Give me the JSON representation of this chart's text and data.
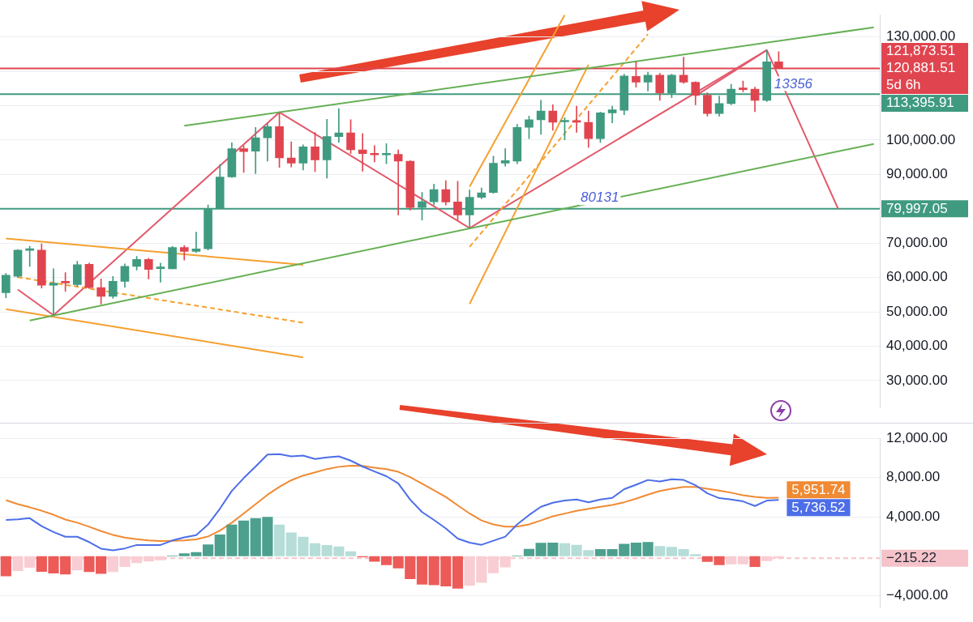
{
  "chart_data": [
    {
      "type": "candlestick",
      "categories": [
        null,
        null,
        null,
        null,
        null,
        null,
        null,
        null,
        null,
        null,
        null,
        null,
        null,
        null,
        null,
        null,
        null,
        null,
        null,
        null,
        null,
        null,
        null,
        null,
        null,
        null,
        null,
        null,
        null,
        null,
        null,
        null,
        null,
        null,
        null,
        null,
        null,
        null,
        null,
        null,
        null,
        null,
        null,
        null,
        null,
        null,
        null,
        null,
        null,
        null,
        null,
        null,
        null,
        null,
        null,
        null,
        null,
        null,
        null,
        null,
        null,
        null,
        null,
        null,
        null,
        null,
        null,
        null,
        null,
        null,
        null,
        null,
        null,
        null
      ],
      "ohlc": [
        [
          55590,
          61200,
          54120,
          60680
        ],
        [
          60330,
          68120,
          60000,
          67990
        ],
        [
          67900,
          69090,
          63240,
          68100
        ],
        [
          67990,
          69800,
          56900,
          57770
        ],
        [
          57770,
          62520,
          49020,
          58360
        ],
        [
          58600,
          61430,
          55960,
          58400
        ],
        [
          57920,
          64710,
          57400,
          63740
        ],
        [
          63830,
          64180,
          56800,
          57050
        ],
        [
          57050,
          59590,
          52300,
          54490
        ],
        [
          54490,
          60330,
          54000,
          58870
        ],
        [
          58870,
          63970,
          57180,
          63240
        ],
        [
          63240,
          66150,
          62150,
          65280
        ],
        [
          65280,
          65600,
          59590,
          62370
        ],
        [
          62600,
          64180,
          58650,
          62800
        ],
        [
          62520,
          69090,
          62520,
          68710
        ],
        [
          68710,
          69300,
          65060,
          67620
        ],
        [
          67620,
          73240,
          67250,
          68340
        ],
        [
          68340,
          81120,
          68000,
          80020
        ],
        [
          80020,
          92930,
          80020,
          89280
        ],
        [
          89280,
          99190,
          89130,
          97530
        ],
        [
          97530,
          98400,
          90590,
          96650
        ],
        [
          96780,
          103720,
          90220,
          100660
        ],
        [
          100660,
          104810,
          93870,
          103940
        ],
        [
          103940,
          107940,
          92060,
          94820
        ],
        [
          94820,
          99500,
          92190,
          93280
        ],
        [
          93280,
          98620,
          91310,
          98030
        ],
        [
          98030,
          102250,
          90810,
          94250
        ],
        [
          94250,
          106060,
          88910,
          101030
        ],
        [
          101030,
          109190,
          99340,
          102120
        ],
        [
          102120,
          105910,
          96060,
          97160
        ],
        [
          97160,
          101900,
          90960,
          96060
        ],
        [
          96000,
          98400,
          93660,
          95700
        ],
        [
          95700,
          98970,
          93150,
          95900
        ],
        [
          95840,
          97160,
          78190,
          93870
        ],
        [
          93870,
          94000,
          79650,
          80370
        ],
        [
          80370,
          84750,
          76740,
          82060
        ],
        [
          82060,
          87160,
          81120,
          85620
        ],
        [
          85620,
          88180,
          81120,
          82000
        ],
        [
          82000,
          88030,
          76740,
          78190
        ],
        [
          78190,
          85490,
          74400,
          83330
        ],
        [
          83330,
          86060,
          82930,
          84640
        ],
        [
          84750,
          95340,
          84500,
          93280
        ],
        [
          93280,
          97530,
          92410,
          94030
        ],
        [
          93870,
          104590,
          93150,
          103720
        ],
        [
          103720,
          107000,
          100440,
          105910
        ],
        [
          105910,
          111600,
          101680,
          108470
        ],
        [
          108470,
          110280,
          102840,
          105190
        ],
        [
          105300,
          106500,
          100070,
          105500
        ],
        [
          105500,
          109910,
          102250,
          105200
        ],
        [
          105190,
          108470,
          97880,
          100440
        ],
        [
          100440,
          108200,
          99340,
          107940
        ],
        [
          107940,
          109910,
          105030,
          108820
        ],
        [
          108690,
          119190,
          107370,
          118660
        ],
        [
          118530,
          122820,
          115380,
          116850
        ],
        [
          116850,
          119760,
          114290,
          118880
        ],
        [
          118880,
          119410,
          111600,
          113780
        ],
        [
          113780,
          119200,
          112320,
          118880
        ],
        [
          118880,
          124130,
          116500,
          116850
        ],
        [
          116850,
          117000,
          110280,
          113060
        ],
        [
          113060,
          113800,
          107000,
          107720
        ],
        [
          107720,
          112840,
          107000,
          110650
        ],
        [
          110650,
          116260,
          110300,
          114810
        ],
        [
          114810,
          117220,
          114070,
          114700
        ],
        [
          114810,
          115400,
          108250,
          111600
        ],
        [
          111600,
          126190,
          111200,
          122820
        ],
        [
          122820,
          125750,
          120881.51,
          120881.51
        ],
        null,
        null,
        null,
        null,
        null,
        null,
        null,
        null
      ],
      "colors": [
        "#3f9a80",
        "#3f9a80",
        "#3f9a80",
        "#e0454f",
        "#3f9a80",
        "#e0454f",
        "#3f9a80",
        "#e0454f",
        "#e0454f",
        "#3f9a80",
        "#3f9a80",
        "#3f9a80",
        "#e0454f",
        "#3f9a80",
        "#3f9a80",
        "#e0454f",
        "#3f9a80",
        "#3f9a80",
        "#3f9a80",
        "#3f9a80",
        "#e0454f",
        "#3f9a80",
        "#3f9a80",
        "#e0454f",
        "#e0454f",
        "#3f9a80",
        "#e0454f",
        "#3f9a80",
        "#3f9a80",
        "#e0454f",
        "#e0454f",
        "#e0454f",
        "#3f9a80",
        "#e0454f",
        "#e0454f",
        "#3f9a80",
        "#3f9a80",
        "#e0454f",
        "#e0454f",
        "#3f9a80",
        "#3f9a80",
        "#3f9a80",
        "#3f9a80",
        "#3f9a80",
        "#3f9a80",
        "#3f9a80",
        "#e0454f",
        "#3f9a80",
        "#e0454f",
        "#e0454f",
        "#3f9a80",
        "#3f9a80",
        "#3f9a80",
        "#e0454f",
        "#3f9a80",
        "#e0454f",
        "#3f9a80",
        "#e0454f",
        "#e0454f",
        "#e0454f",
        "#3f9a80",
        "#3f9a80",
        "#e0454f",
        "#e0454f",
        "#3f9a80",
        "#e0454f",
        null,
        null,
        null,
        null,
        null,
        null,
        null,
        null
      ],
      "series": [
        {
          "type": "line",
          "color": "#66b055",
          "values": [
            null,
            null,
            null,
            null,
            null,
            null,
            null,
            null,
            null,
            null,
            null,
            null,
            null,
            null,
            null,
            104160,
            null,
            null,
            null,
            null,
            null,
            null,
            null,
            null,
            null,
            null,
            null,
            null,
            null,
            null,
            null,
            null,
            null,
            null,
            null,
            null,
            null,
            null,
            null,
            null,
            null,
            null,
            null,
            null,
            null,
            null,
            null,
            null,
            null,
            null,
            null,
            null,
            null,
            null,
            null,
            null,
            null,
            null,
            null,
            null,
            null,
            null,
            null,
            null,
            null,
            null,
            null,
            null,
            null,
            null,
            null,
            null,
            null,
            132820
          ]
        },
        {
          "type": "line",
          "color": "#66b055",
          "values": [
            null,
            null,
            47490,
            null,
            null,
            null,
            null,
            null,
            null,
            null,
            null,
            null,
            null,
            null,
            null,
            null,
            null,
            null,
            null,
            null,
            null,
            null,
            null,
            null,
            null,
            null,
            null,
            null,
            null,
            null,
            null,
            null,
            null,
            null,
            null,
            null,
            null,
            null,
            null,
            null,
            null,
            null,
            null,
            null,
            null,
            null,
            null,
            null,
            null,
            null,
            null,
            null,
            null,
            null,
            null,
            null,
            null,
            null,
            null,
            null,
            null,
            null,
            null,
            null,
            null,
            null,
            null,
            null,
            null,
            null,
            null,
            null,
            null,
            98900
          ]
        },
        {
          "type": "line",
          "color": "#f5a030",
          "values": [
            71340,
            null,
            null,
            null,
            null,
            null,
            null,
            null,
            null,
            null,
            null,
            null,
            null,
            null,
            null,
            null,
            null,
            null,
            null,
            null,
            null,
            null,
            null,
            null,
            null,
            63680,
            null,
            null,
            null,
            null,
            null,
            null,
            null,
            null,
            null,
            null,
            null,
            null,
            null,
            null,
            null,
            null,
            null,
            null,
            null,
            null,
            null,
            null,
            null,
            null,
            null,
            null,
            null,
            null,
            null,
            null,
            null,
            null,
            null,
            null,
            null,
            null,
            null,
            null,
            null,
            null,
            null,
            null,
            null,
            null,
            null,
            null,
            null,
            null
          ]
        },
        {
          "type": "line",
          "color": "#f5a030",
          "values": [
            50770,
            null,
            null,
            null,
            null,
            null,
            null,
            null,
            null,
            null,
            null,
            null,
            null,
            null,
            null,
            null,
            null,
            null,
            null,
            null,
            null,
            null,
            null,
            null,
            null,
            36770,
            null,
            null,
            null,
            null,
            null,
            null,
            null,
            null,
            null,
            null,
            null,
            null,
            null,
            null,
            null,
            null,
            null,
            null,
            null,
            null,
            null,
            null,
            null,
            null,
            null,
            null,
            null,
            null,
            null,
            null,
            null,
            null,
            null,
            null,
            null,
            null,
            null,
            null,
            null,
            null,
            null,
            null,
            null,
            null,
            null,
            null,
            null,
            null
          ]
        },
        {
          "type": "line",
          "color": "#f5a030",
          "line_style": "dashed",
          "values": [
            null,
            60090,
            null,
            null,
            null,
            null,
            null,
            null,
            null,
            null,
            null,
            null,
            null,
            null,
            null,
            null,
            null,
            null,
            null,
            null,
            null,
            null,
            null,
            null,
            null,
            46830,
            null,
            null,
            null,
            null,
            null,
            null,
            null,
            null,
            null,
            null,
            null,
            null,
            null,
            null,
            null,
            null,
            null,
            null,
            null,
            null,
            null,
            null,
            null,
            null,
            null,
            null,
            null,
            null,
            null,
            null,
            null,
            null,
            null,
            null,
            null,
            null,
            null,
            null,
            null,
            null,
            null,
            null,
            null,
            null,
            null,
            null,
            null,
            null
          ]
        },
        {
          "type": "line",
          "color": "#f5a030",
          "values": [
            null,
            null,
            null,
            null,
            null,
            null,
            null,
            null,
            null,
            null,
            null,
            null,
            null,
            null,
            null,
            null,
            null,
            null,
            null,
            null,
            null,
            null,
            null,
            null,
            null,
            null,
            null,
            null,
            null,
            null,
            null,
            null,
            null,
            null,
            null,
            null,
            null,
            null,
            null,
            52300,
            null,
            null,
            null,
            null,
            null,
            null,
            null,
            null,
            null,
            121950,
            null,
            null,
            null,
            null,
            null,
            null,
            null,
            null,
            null,
            null,
            null,
            null,
            null,
            null,
            null,
            null,
            null,
            null,
            null,
            null,
            null,
            null,
            null,
            null
          ]
        },
        {
          "type": "line",
          "color": "#f5a030",
          "values": [
            null,
            null,
            null,
            null,
            null,
            null,
            null,
            null,
            null,
            null,
            null,
            null,
            null,
            null,
            null,
            null,
            null,
            null,
            null,
            null,
            null,
            null,
            null,
            null,
            null,
            null,
            null,
            null,
            null,
            null,
            null,
            null,
            null,
            null,
            null,
            null,
            null,
            null,
            null,
            86430,
            null,
            null,
            null,
            null,
            null,
            null,
            null,
            136440,
            null,
            null,
            null,
            null,
            null,
            null,
            null,
            null,
            null,
            null,
            null,
            null,
            null,
            null,
            null,
            null,
            null,
            null,
            null,
            null,
            null,
            null,
            null,
            null,
            null,
            null
          ]
        },
        {
          "type": "line",
          "color": "#f5a030",
          "line_style": "dashed",
          "values": [
            null,
            null,
            null,
            null,
            null,
            null,
            null,
            null,
            null,
            null,
            null,
            null,
            null,
            null,
            null,
            null,
            null,
            null,
            null,
            null,
            null,
            null,
            null,
            null,
            null,
            null,
            null,
            null,
            null,
            null,
            null,
            null,
            null,
            null,
            null,
            null,
            null,
            null,
            null,
            68930,
            null,
            null,
            null,
            null,
            null,
            null,
            null,
            null,
            null,
            null,
            null,
            null,
            null,
            null,
            130850,
            null,
            null,
            null,
            null,
            null,
            null,
            null,
            null,
            null,
            null,
            null,
            null,
            null,
            null,
            null,
            null,
            null,
            null,
            null
          ]
        },
        {
          "type": "line",
          "color": "#e2596b",
          "values": [
            null,
            56500,
            null,
            null,
            49020,
            null,
            null,
            null,
            null,
            null,
            null,
            null,
            null,
            null,
            null,
            null,
            null,
            null,
            null,
            null,
            null,
            null,
            null,
            108100,
            null,
            null,
            null,
            null,
            null,
            null,
            null,
            null,
            null,
            null,
            null,
            null,
            null,
            null,
            null,
            74400,
            null,
            null,
            null,
            null,
            null,
            null,
            null,
            null,
            null,
            null,
            null,
            null,
            null,
            null,
            null,
            null,
            null,
            null,
            null,
            null,
            null,
            null,
            null,
            null,
            126190,
            null,
            null,
            null,
            null,
            null,
            79997.05,
            null,
            null,
            null
          ]
        },
        {
          "type": "line",
          "color": "#e2596b",
          "values": [
            null,
            null,
            null,
            null,
            null,
            null,
            null,
            null,
            null,
            null,
            null,
            null,
            null,
            null,
            null,
            null,
            null,
            null,
            null,
            null,
            null,
            null,
            null,
            null,
            null,
            null,
            null,
            null,
            null,
            null,
            null,
            null,
            null,
            null,
            null,
            null,
            null,
            null,
            null,
            null,
            null,
            null,
            null,
            null,
            null,
            null,
            null,
            null,
            null,
            null,
            null,
            null,
            null,
            null,
            null,
            null,
            null,
            null,
            112900,
            null,
            null,
            null,
            null,
            null,
            126190,
            null,
            null,
            null,
            null,
            null,
            null,
            null,
            null,
            null
          ]
        }
      ],
      "ylim": [
        22000,
        136500
      ],
      "yticks": [
        {
          "value": 30000,
          "label": "30,000.00"
        },
        {
          "value": 40000,
          "label": "40,000.00"
        },
        {
          "value": 50000,
          "label": "50,000.00"
        },
        {
          "value": 60000,
          "label": "60,000.00"
        },
        {
          "value": 70000,
          "label": "70,000.00"
        },
        {
          "value": 80000,
          "label": null
        },
        {
          "value": 90000,
          "label": "90,000.00"
        },
        {
          "value": 100000,
          "label": "100,000.00"
        },
        {
          "value": 110000,
          "label": null
        },
        {
          "value": 120000,
          "label": null
        },
        {
          "value": 130000,
          "label": "130,000.00"
        }
      ],
      "grid": "y",
      "ref_lines": [
        {
          "axis": "y",
          "value": 120881.51,
          "label": "120,881.51",
          "color": "#e0454f"
        },
        {
          "axis": "y",
          "value": 113395.91,
          "label": "113,395.91",
          "color": "#3f9a80"
        },
        {
          "axis": "y",
          "value": 79997.05,
          "label": "79,997.05",
          "color": "#3f9a80"
        }
      ],
      "annotations": [
        "121,873.51",
        "5d 6h",
        {
          "text": "80131",
          "y": 80131
        },
        {
          "text": "13356",
          "y": 113356
        }
      ]
    },
    {
      "type": "bar",
      "categories": [
        null,
        null,
        null,
        null,
        null,
        null,
        null,
        null,
        null,
        null,
        null,
        null,
        null,
        null,
        null,
        null,
        null,
        null,
        null,
        null,
        null,
        null,
        null,
        null,
        null,
        null,
        null,
        null,
        null,
        null,
        null,
        null,
        null,
        null,
        null,
        null,
        null,
        null,
        null,
        null,
        null,
        null,
        null,
        null,
        null,
        null,
        null,
        null,
        null,
        null,
        null,
        null,
        null,
        null,
        null,
        null,
        null,
        null,
        null,
        null,
        null,
        null,
        null,
        null,
        null,
        null,
        null,
        null,
        null,
        null,
        null,
        null,
        null,
        null
      ],
      "series": [
        {
          "type": "bar",
          "values": [
            -2040,
            -1500,
            -1180,
            -1580,
            -1750,
            -1850,
            -1450,
            -1610,
            -1800,
            -1610,
            -1100,
            -700,
            -530,
            -420,
            60,
            280,
            410,
            1190,
            2200,
            3220,
            3630,
            3870,
            4000,
            3220,
            2410,
            1980,
            1310,
            1140,
            980,
            490,
            -100,
            -560,
            -910,
            -1240,
            -2340,
            -2880,
            -2940,
            -3070,
            -3290,
            -3020,
            -2700,
            -1740,
            -1130,
            60,
            750,
            1360,
            1380,
            1310,
            1160,
            610,
            720,
            720,
            1250,
            1380,
            1450,
            1020,
            950,
            720,
            200,
            -570,
            -900,
            -830,
            -830,
            -1100,
            -490,
            -215.22,
            null,
            null,
            null,
            null,
            null,
            null,
            null,
            null
          ],
          "colors": [
            "#ec5b58",
            "#f8cdd3",
            "#f8cdd3",
            "#ec5b58",
            "#ec5b58",
            "#ec5b58",
            "#f8cdd3",
            "#ec5b58",
            "#ec5b58",
            "#f8cdd3",
            "#f8cdd3",
            "#f8cdd3",
            "#f8cdd3",
            "#f8cdd3",
            "#4da08e",
            "#4da08e",
            "#4da08e",
            "#4da08e",
            "#4da08e",
            "#4da08e",
            "#4da08e",
            "#4da08e",
            "#4da08e",
            "#b6ddd8",
            "#b6ddd8",
            "#b6ddd8",
            "#b6ddd8",
            "#b6ddd8",
            "#b6ddd8",
            "#b6ddd8",
            "#ec5b58",
            "#ec5b58",
            "#ec5b58",
            "#ec5b58",
            "#ec5b58",
            "#ec5b58",
            "#ec5b58",
            "#ec5b58",
            "#ec5b58",
            "#f8cdd3",
            "#f8cdd3",
            "#f8cdd3",
            "#f8cdd3",
            "#4da08e",
            "#4da08e",
            "#4da08e",
            "#4da08e",
            "#b6ddd8",
            "#b6ddd8",
            "#b6ddd8",
            "#4da08e",
            "#4da08e",
            "#4da08e",
            "#4da08e",
            "#4da08e",
            "#b6ddd8",
            "#b6ddd8",
            "#b6ddd8",
            "#b6ddd8",
            "#ec5b58",
            "#ec5b58",
            "#f8cdd3",
            "#f8cdd3",
            "#ec5b58",
            "#f8cdd3",
            "#f8cdd3",
            null,
            null,
            null,
            null,
            null,
            null,
            null,
            null
          ]
        },
        {
          "type": "line",
          "color": "#4d6ee8",
          "values": [
            3690,
            3760,
            3870,
            3060,
            2460,
            1980,
            1980,
            1440,
            770,
            600,
            790,
            1140,
            1140,
            1140,
            1600,
            1920,
            2140,
            3220,
            4840,
            6650,
            7950,
            9130,
            10350,
            10380,
            10160,
            10240,
            9890,
            10050,
            10160,
            9730,
            9130,
            8620,
            8140,
            7410,
            5760,
            4490,
            3690,
            2820,
            1790,
            1380,
            1160,
            1580,
            1990,
            3230,
            4190,
            5030,
            5440,
            5660,
            5770,
            5490,
            5770,
            5940,
            6820,
            7280,
            7760,
            7610,
            7840,
            7760,
            7230,
            6400,
            5910,
            5770,
            5580,
            5110,
            5660,
            5736.52,
            null,
            null,
            null,
            null,
            null,
            null,
            null,
            null
          ],
          "value_labels": [
            null,
            null,
            null,
            null,
            null,
            null,
            null,
            null,
            null,
            null,
            null,
            null,
            null,
            null,
            null,
            null,
            null,
            null,
            null,
            null,
            null,
            null,
            null,
            null,
            null,
            null,
            null,
            null,
            null,
            null,
            null,
            null,
            null,
            null,
            null,
            null,
            null,
            null,
            null,
            null,
            null,
            null,
            null,
            null,
            null,
            null,
            null,
            null,
            null,
            null,
            null,
            null,
            null,
            null,
            null,
            null,
            null,
            null,
            null,
            null,
            null,
            null,
            null,
            null,
            null,
            "5,736.52",
            null,
            null,
            null,
            null,
            null,
            null,
            null,
            null
          ]
        },
        {
          "type": "line",
          "color": "#f08a33",
          "values": [
            5710,
            5300,
            4980,
            4630,
            4220,
            3730,
            3410,
            3000,
            2550,
            2170,
            1900,
            1730,
            1600,
            1540,
            1570,
            1600,
            1710,
            2010,
            2600,
            3410,
            4350,
            5300,
            6250,
            7060,
            7730,
            8210,
            8540,
            8870,
            9100,
            9220,
            9190,
            9000,
            8870,
            8590,
            8050,
            7380,
            6700,
            6030,
            5170,
            4350,
            3640,
            3230,
            3010,
            3010,
            3230,
            3640,
            4060,
            4340,
            4610,
            4830,
            5030,
            5220,
            5490,
            5850,
            6270,
            6630,
            6870,
            7040,
            7040,
            6870,
            6680,
            6460,
            6210,
            6040,
            5940,
            5951.74,
            null,
            null,
            null,
            null,
            null,
            null,
            null,
            null
          ],
          "value_labels": [
            null,
            null,
            null,
            null,
            null,
            null,
            null,
            null,
            null,
            null,
            null,
            null,
            null,
            null,
            null,
            null,
            null,
            null,
            null,
            null,
            null,
            null,
            null,
            null,
            null,
            null,
            null,
            null,
            null,
            null,
            null,
            null,
            null,
            null,
            null,
            null,
            null,
            null,
            null,
            null,
            null,
            null,
            null,
            null,
            null,
            null,
            null,
            null,
            null,
            null,
            null,
            null,
            null,
            null,
            null,
            null,
            null,
            null,
            null,
            null,
            null,
            null,
            null,
            null,
            null,
            "5,951.74",
            null,
            null,
            null,
            null,
            null,
            null,
            null,
            null
          ]
        }
      ],
      "ylim": [
        -5200,
        12000
      ],
      "yticks": [
        {
          "value": -4000,
          "label": "−4,000.00"
        },
        {
          "value": 4000,
          "label": "4,000.00"
        },
        {
          "value": 8000,
          "label": "8,000.00"
        },
        {
          "value": 12000,
          "label": "12,000.00"
        }
      ],
      "grid": "y",
      "ref_lines": [
        {
          "axis": "y",
          "value": -215.22,
          "label": "−215.22",
          "color": "#f6c3ca",
          "line_style": "dashed"
        }
      ]
    }
  ]
}
